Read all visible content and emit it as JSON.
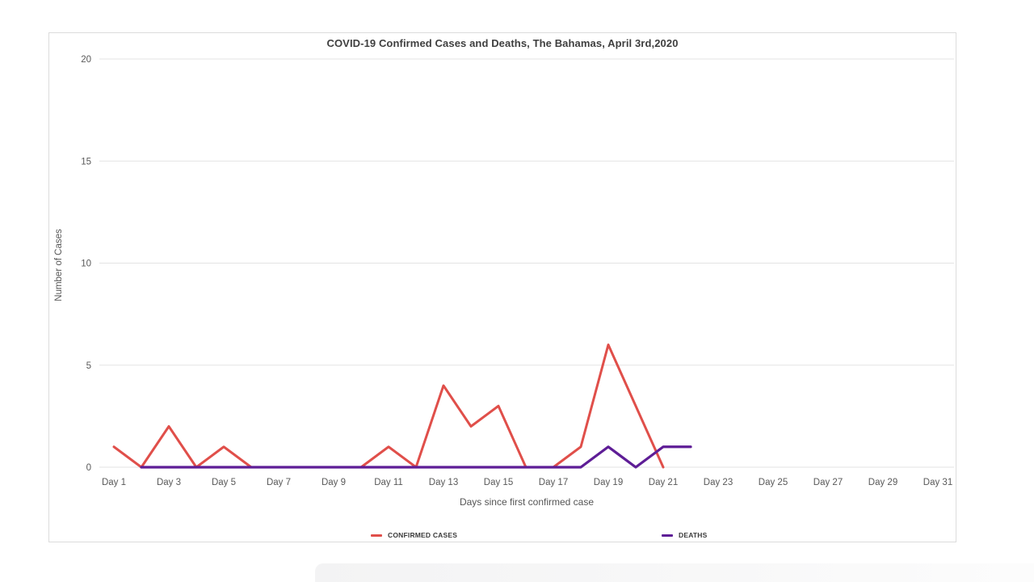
{
  "chart": {
    "title": "COVID-19 Confirmed Cases and Deaths, The Bahamas, April 3rd,2020"
  },
  "chart_data": {
    "type": "line",
    "title": "COVID-19 Confirmed Cases and Deaths, The Bahamas, April 3rd,2020",
    "xlabel": "Days since first confirmed case",
    "ylabel": "Number of Cases",
    "xlim": [
      1,
      31
    ],
    "ylim": [
      0,
      20
    ],
    "yticks": [
      0,
      5,
      10,
      15,
      20
    ],
    "x_tick_positions": [
      1,
      3,
      5,
      7,
      9,
      11,
      13,
      15,
      17,
      19,
      21,
      23,
      25,
      27,
      29,
      31
    ],
    "x_tick_labels": [
      "Day 1",
      "Day 3",
      "Day 5",
      "Day 7",
      "Day 9",
      "Day 11",
      "Day 13",
      "Day 15",
      "Day 17",
      "Day 19",
      "Day 21",
      "Day 23",
      "Day 25",
      "Day 27",
      "Day 29",
      "Day 31"
    ],
    "grid": true,
    "legend_position": "bottom",
    "series": [
      {
        "name": "CONFIRMED CASES",
        "color": "#e04f4a",
        "x": [
          1,
          2,
          3,
          4,
          5,
          6,
          7,
          8,
          9,
          10,
          11,
          12,
          13,
          14,
          15,
          16,
          17,
          18,
          19,
          20,
          21
        ],
        "values": [
          1,
          0,
          2,
          0,
          1,
          0,
          0,
          0,
          0,
          0,
          1,
          0,
          4,
          2,
          3,
          0,
          0,
          1,
          6,
          3,
          0
        ]
      },
      {
        "name": "DEATHS",
        "color": "#5e1d96",
        "x": [
          2,
          3,
          4,
          5,
          6,
          7,
          8,
          9,
          10,
          11,
          12,
          13,
          14,
          15,
          16,
          17,
          18,
          19,
          20,
          21,
          22
        ],
        "values": [
          0,
          0,
          0,
          0,
          0,
          0,
          0,
          0,
          0,
          0,
          0,
          0,
          0,
          0,
          0,
          0,
          0,
          1,
          0,
          1,
          1
        ]
      }
    ]
  },
  "colors": {
    "grid": "#e3e3e3",
    "border": "#dcdcdc",
    "tick_text": "#595959",
    "title_text": "#3f3f3f"
  }
}
